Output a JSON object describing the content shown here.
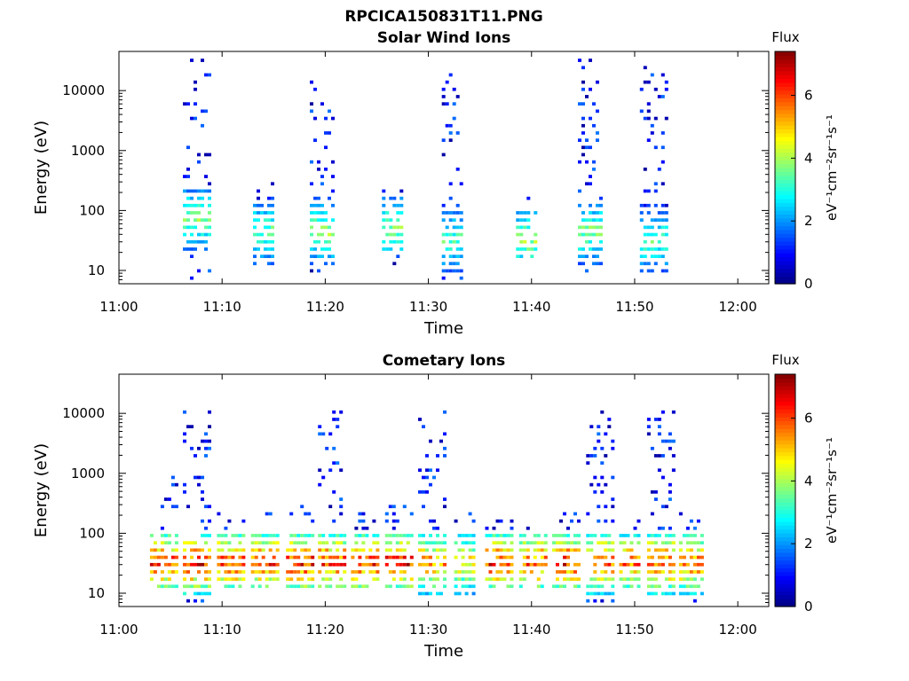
{
  "figure": {
    "title": "RPCICA150831T11.PNG"
  },
  "chart_data": [
    {
      "type": "heatmap",
      "title": "Solar Wind Ions",
      "xlabel": "Time",
      "ylabel": "Energy (eV)",
      "x_ticks": [
        "11:00",
        "11:10",
        "11:20",
        "11:30",
        "11:40",
        "11:50",
        "12:00"
      ],
      "xlim_minutes": [
        0,
        63
      ],
      "y_ticks": [
        "10",
        "100",
        "1000",
        "10000"
      ],
      "y_scale": "log",
      "ylim": [
        6,
        45000
      ],
      "colorbar": {
        "label": "Flux",
        "unit": "eV⁻¹cm⁻²sr⁻¹s⁻¹",
        "ticks": [
          "0",
          "2",
          "4",
          "6"
        ],
        "range": [
          0,
          7.4
        ],
        "colormap": "jet"
      },
      "bursts": [
        {
          "t": 6.2,
          "w": 2.6,
          "e_lo": 6,
          "e_hi": 30000,
          "low_e_peak": 70,
          "peak_flux": 4.2
        },
        {
          "t": 13.0,
          "w": 2.0,
          "e_lo": 10,
          "e_hi": 300,
          "low_e_peak": 40,
          "peak_flux": 4.0
        },
        {
          "t": 18.5,
          "w": 2.4,
          "e_lo": 6,
          "e_hi": 25000,
          "low_e_peak": 40,
          "peak_flux": 4.3
        },
        {
          "t": 25.5,
          "w": 2.0,
          "e_lo": 10,
          "e_hi": 200,
          "low_e_peak": 50,
          "peak_flux": 4.3
        },
        {
          "t": 31.3,
          "w": 2.2,
          "e_lo": 6,
          "e_hi": 25000,
          "low_e_peak": 30,
          "peak_flux": 3.8
        },
        {
          "t": 38.5,
          "w": 2.0,
          "e_lo": 15,
          "e_hi": 150,
          "low_e_peak": 30,
          "peak_flux": 4.4
        },
        {
          "t": 44.5,
          "w": 2.5,
          "e_lo": 8,
          "e_hi": 30000,
          "low_e_peak": 40,
          "peak_flux": 4.2
        },
        {
          "t": 50.5,
          "w": 2.6,
          "e_lo": 8,
          "e_hi": 25000,
          "low_e_peak": 30,
          "peak_flux": 3.8
        }
      ]
    },
    {
      "type": "heatmap",
      "title": "Cometary Ions",
      "xlabel": "Time",
      "ylabel": "Energy (eV)",
      "x_ticks": [
        "11:00",
        "11:10",
        "11:20",
        "11:30",
        "11:40",
        "11:50",
        "12:00"
      ],
      "xlim_minutes": [
        0,
        63
      ],
      "y_ticks": [
        "10",
        "100",
        "1000",
        "10000"
      ],
      "y_scale": "log",
      "ylim": [
        6,
        45000
      ],
      "colorbar": {
        "label": "Flux",
        "unit": "eV⁻¹cm⁻²sr⁻¹s⁻¹",
        "ticks": [
          "0",
          "2",
          "4",
          "6"
        ],
        "range": [
          0,
          7.4
        ],
        "colormap": "jet"
      },
      "bursts": [
        {
          "t": 3.0,
          "w": 2.6,
          "e_lo": 12,
          "e_hi": 1000,
          "low_e_peak": 30,
          "peak_flux": 7.0
        },
        {
          "t": 6.2,
          "w": 2.6,
          "e_lo": 6,
          "e_hi": 10000,
          "low_e_peak": 30,
          "peak_flux": 7.2
        },
        {
          "t": 9.5,
          "w": 2.6,
          "e_lo": 12,
          "e_hi": 200,
          "low_e_peak": 30,
          "peak_flux": 7.1
        },
        {
          "t": 12.8,
          "w": 2.6,
          "e_lo": 12,
          "e_hi": 300,
          "low_e_peak": 30,
          "peak_flux": 7.0
        },
        {
          "t": 16.2,
          "w": 2.6,
          "e_lo": 12,
          "e_hi": 300,
          "low_e_peak": 30,
          "peak_flux": 7.2
        },
        {
          "t": 19.3,
          "w": 2.6,
          "e_lo": 12,
          "e_hi": 10000,
          "low_e_peak": 30,
          "peak_flux": 7.0
        },
        {
          "t": 22.5,
          "w": 2.6,
          "e_lo": 12,
          "e_hi": 200,
          "low_e_peak": 30,
          "peak_flux": 7.1
        },
        {
          "t": 25.8,
          "w": 2.6,
          "e_lo": 12,
          "e_hi": 300,
          "low_e_peak": 30,
          "peak_flux": 7.2
        },
        {
          "t": 29.0,
          "w": 2.6,
          "e_lo": 8,
          "e_hi": 10000,
          "low_e_peak": 30,
          "peak_flux": 6.2
        },
        {
          "t": 32.5,
          "w": 2.0,
          "e_lo": 8,
          "e_hi": 200,
          "low_e_peak": 30,
          "peak_flux": 5.5
        },
        {
          "t": 35.5,
          "w": 2.6,
          "e_lo": 12,
          "e_hi": 150,
          "low_e_peak": 30,
          "peak_flux": 7.1
        },
        {
          "t": 38.8,
          "w": 2.6,
          "e_lo": 12,
          "e_hi": 150,
          "low_e_peak": 30,
          "peak_flux": 6.8
        },
        {
          "t": 42.0,
          "w": 2.6,
          "e_lo": 12,
          "e_hi": 200,
          "low_e_peak": 30,
          "peak_flux": 7.2
        },
        {
          "t": 45.3,
          "w": 2.6,
          "e_lo": 6,
          "e_hi": 10000,
          "low_e_peak": 30,
          "peak_flux": 6.8
        },
        {
          "t": 48.5,
          "w": 2.2,
          "e_lo": 12,
          "e_hi": 150,
          "low_e_peak": 30,
          "peak_flux": 6.5
        },
        {
          "t": 51.2,
          "w": 2.6,
          "e_lo": 8,
          "e_hi": 10000,
          "low_e_peak": 30,
          "peak_flux": 6.8
        },
        {
          "t": 54.3,
          "w": 2.4,
          "e_lo": 6,
          "e_hi": 250,
          "low_e_peak": 30,
          "peak_flux": 6.6
        }
      ]
    }
  ]
}
